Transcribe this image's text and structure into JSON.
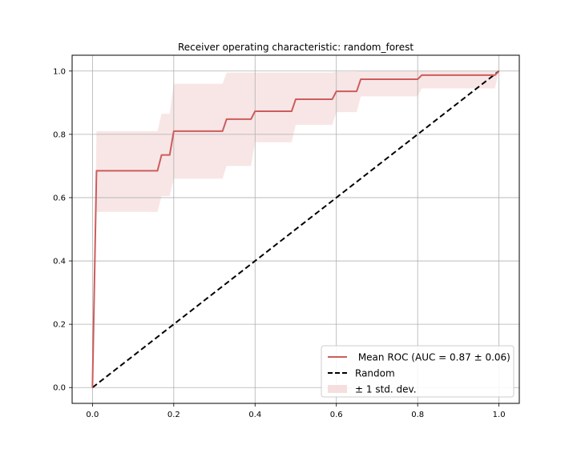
{
  "chart_data": {
    "type": "line",
    "title": "Receiver operating characteristic: random_forest",
    "xlabel": "",
    "ylabel": "",
    "xlim": [
      -0.05,
      1.05
    ],
    "ylim": [
      -0.05,
      1.05
    ],
    "x_ticks": [
      0.0,
      0.2,
      0.4,
      0.6,
      0.8,
      1.0
    ],
    "x_tick_labels": [
      "0.0",
      "0.2",
      "0.4",
      "0.6",
      "0.8",
      "1.0"
    ],
    "y_ticks": [
      0.0,
      0.2,
      0.4,
      0.6,
      0.8,
      1.0
    ],
    "y_tick_labels": [
      "0.0",
      "0.2",
      "0.4",
      "0.6",
      "0.8",
      "1.0"
    ],
    "grid": true,
    "legend_position": "lower-right",
    "colors": {
      "mean_roc": "#cd5c5c",
      "band": "#f6dede",
      "random": "#000000",
      "grid": "#b0b0b0"
    },
    "series": [
      {
        "name": " Mean ROC (AUC = 0.87 ± 0.06)",
        "kind": "line",
        "x": [
          0.0,
          0.01,
          0.01,
          0.16,
          0.17,
          0.17,
          0.19,
          0.2,
          0.2,
          0.32,
          0.33,
          0.33,
          0.39,
          0.4,
          0.4,
          0.49,
          0.5,
          0.5,
          0.59,
          0.6,
          0.6,
          0.65,
          0.66,
          0.66,
          0.8,
          0.81,
          0.81,
          0.99,
          1.0
        ],
        "y": [
          0.0,
          0.685,
          0.685,
          0.685,
          0.735,
          0.735,
          0.735,
          0.81,
          0.81,
          0.81,
          0.848,
          0.848,
          0.848,
          0.873,
          0.873,
          0.873,
          0.911,
          0.911,
          0.911,
          0.936,
          0.936,
          0.936,
          0.974,
          0.974,
          0.974,
          0.987,
          0.987,
          0.987,
          1.0
        ]
      },
      {
        "name": "Random",
        "kind": "dashed-line",
        "x": [
          0.0,
          1.0
        ],
        "y": [
          0.0,
          1.0
        ]
      },
      {
        "name": "± 1 std. dev.",
        "kind": "band",
        "x": [
          0.0,
          0.01,
          0.16,
          0.17,
          0.19,
          0.2,
          0.32,
          0.33,
          0.39,
          0.4,
          0.49,
          0.5,
          0.59,
          0.6,
          0.65,
          0.66,
          0.8,
          0.81,
          0.99,
          1.0
        ],
        "y_upper": [
          0.0,
          0.81,
          0.81,
          0.865,
          0.865,
          0.96,
          0.96,
          0.995,
          0.995,
          0.995,
          0.995,
          0.995,
          0.995,
          0.998,
          0.998,
          1.0,
          1.0,
          1.0,
          1.0,
          1.0
        ],
        "y_lower": [
          0.0,
          0.555,
          0.555,
          0.605,
          0.605,
          0.66,
          0.66,
          0.7,
          0.7,
          0.775,
          0.775,
          0.83,
          0.83,
          0.87,
          0.87,
          0.92,
          0.92,
          0.945,
          0.945,
          1.0
        ]
      }
    ]
  }
}
